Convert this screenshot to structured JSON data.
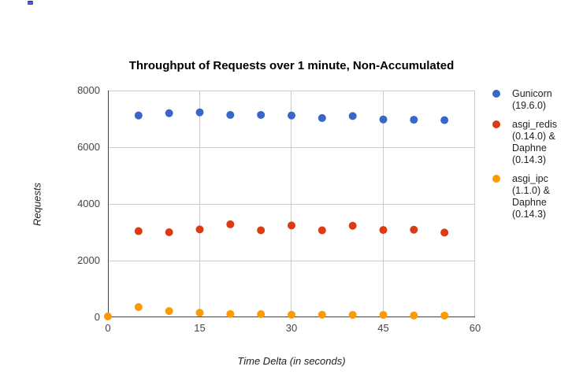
{
  "chart_data": {
    "type": "scatter",
    "title": "Throughput of Requests over 1 minute, Non-Accumulated",
    "xlabel": "Time Delta (in seconds)",
    "ylabel": "Requests",
    "xlim": [
      0,
      60
    ],
    "ylim": [
      0,
      8000
    ],
    "x_ticks": [
      0,
      15,
      30,
      45,
      60
    ],
    "y_ticks": [
      0,
      2000,
      4000,
      6000,
      8000
    ],
    "x_tick_labels": [
      "0",
      "15",
      "30",
      "45",
      "60"
    ],
    "y_tick_labels": [
      "0",
      "2000",
      "4000",
      "6000",
      "8000"
    ],
    "grid": true,
    "legend_position": "right",
    "series": [
      {
        "name": "Gunicorn (19.6.0)",
        "label_lines": [
          "Gunicorn",
          "(19.6.0)"
        ],
        "color": "#3A66C9",
        "x": [
          5,
          10,
          15,
          20,
          25,
          30,
          35,
          40,
          45,
          50,
          55
        ],
        "y": [
          7120,
          7200,
          7230,
          7140,
          7140,
          7120,
          7030,
          7100,
          6980,
          6970,
          6955
        ]
      },
      {
        "name": "asgi_redis (0.14.0) & Daphne (0.14.3)",
        "label_lines": [
          "asgi_redis",
          "(0.14.0) &",
          "Daphne",
          "(0.14.3)"
        ],
        "color": "#DB3A12",
        "x": [
          5,
          10,
          15,
          20,
          25,
          30,
          35,
          40,
          45,
          50,
          55
        ],
        "y": [
          3040,
          3000,
          3100,
          3280,
          3070,
          3240,
          3070,
          3230,
          3080,
          3090,
          2990
        ]
      },
      {
        "name": "asgi_ipc (1.1.0) & Daphne (0.14.3)",
        "label_lines": [
          "asgi_ipc",
          "(1.1.0) &",
          "Daphne",
          "(0.14.3)"
        ],
        "color": "#FF9900",
        "x": [
          0,
          5,
          10,
          15,
          20,
          25,
          30,
          35,
          40,
          45,
          50,
          55
        ],
        "y": [
          30,
          360,
          220,
          160,
          115,
          110,
          90,
          90,
          85,
          85,
          65,
          60
        ]
      }
    ],
    "colors": {
      "grid": "#CCCCCC",
      "axis": "#424242",
      "tick_label": "#444444",
      "title": "#000000",
      "axis_title": "#222222"
    },
    "point_radius": 5
  }
}
